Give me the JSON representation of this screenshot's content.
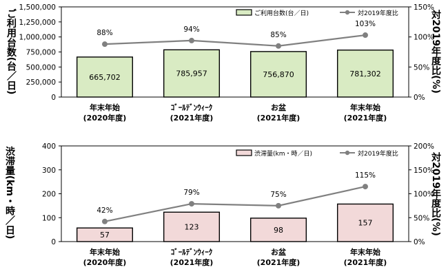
{
  "chart_data": [
    {
      "type": "bar",
      "categories": [
        [
          "年末年始",
          "(2020年度)"
        ],
        [
          "ｺﾞｰﾙﾃﾞﾝｳｨｰｸ",
          "(2021年度)"
        ],
        [
          "お盆",
          "(2021年度)"
        ],
        [
          "年末年始",
          "(2021年度)"
        ]
      ],
      "series": [
        {
          "name": "ご利用台数(台／日)",
          "type": "bar",
          "axis": "left",
          "values": [
            665702,
            785957,
            756870,
            781302
          ],
          "labels": [
            "665,702",
            "785,957",
            "756,870",
            "781,302"
          ]
        },
        {
          "name": "対2019年度比",
          "type": "line",
          "axis": "right",
          "values": [
            88,
            94,
            85,
            103
          ],
          "labels": [
            "88%",
            "94%",
            "85%",
            "103%"
          ]
        }
      ],
      "ylabel": "ご利用台数(台／日)",
      "y2label": "対2019年度比(%)",
      "ylim": [
        0,
        1500000
      ],
      "yticks": [
        "0",
        "250,000",
        "500,000",
        "750,000",
        "1,000,000",
        "1,250,000",
        "1,500,000"
      ],
      "y2lim": [
        0,
        150
      ],
      "y2ticks": [
        "0%",
        "50%",
        "100%",
        "150%"
      ],
      "bar_color": "#d9ebc3",
      "legend_position": "top-right",
      "grid": false
    },
    {
      "type": "bar",
      "categories": [
        [
          "年末年始",
          "(2020年度)"
        ],
        [
          "ｺﾞｰﾙﾃﾞﾝｳｨｰｸ",
          "(2021年度)"
        ],
        [
          "お盆",
          "(2021年度)"
        ],
        [
          "年末年始",
          "(2021年度)"
        ]
      ],
      "series": [
        {
          "name": "渋滞量(km・時／日)",
          "type": "bar",
          "axis": "left",
          "values": [
            57,
            123,
            98,
            157
          ],
          "labels": [
            "57",
            "123",
            "98",
            "157"
          ]
        },
        {
          "name": "対2019年度比",
          "type": "line",
          "axis": "right",
          "values": [
            42,
            79,
            75,
            115
          ],
          "labels": [
            "42%",
            "79%",
            "75%",
            "115%"
          ]
        }
      ],
      "ylabel": "渋滞量(km・時／日)",
      "y2label": "対2019年度比(%)",
      "ylim": [
        0,
        400
      ],
      "yticks": [
        "0",
        "100",
        "200",
        "300",
        "400"
      ],
      "y2lim": [
        0,
        200
      ],
      "y2ticks": [
        "0%",
        "50%",
        "100%",
        "150%",
        "200%"
      ],
      "bar_color": "#f2d9d9",
      "legend_position": "top-right",
      "grid": false
    }
  ],
  "colors": {
    "bar_border": "#000000",
    "line": "#808080",
    "marker": "#808080"
  }
}
